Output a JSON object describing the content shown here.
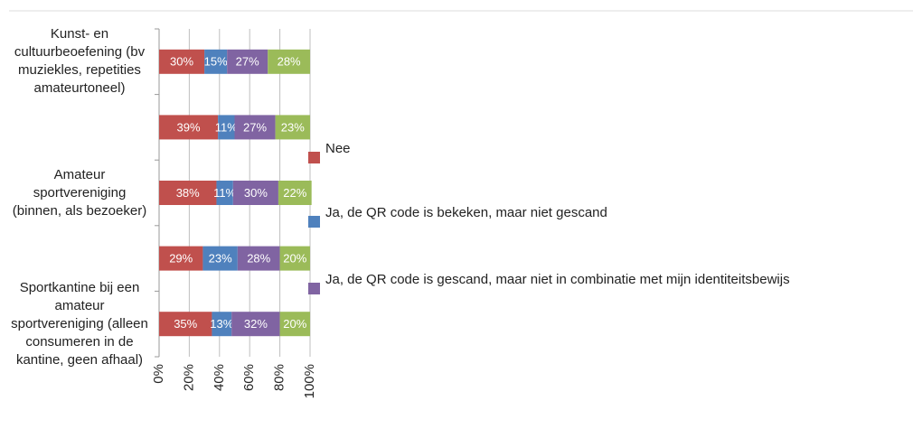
{
  "chart_data": {
    "type": "stacked_barh",
    "categories": [
      "Kunst- en cultuurbeoefening (bv muziekles, repetities amateurtoneel)",
      null,
      "Amateur sportvereniging (binnen, als bezoeker)",
      null,
      "Sportkantine bij een amateur sportvereniging (alleen consumeren in de kantine, geen afhaal)"
    ],
    "series": [
      {
        "name": "Nee",
        "color": "#c0504d",
        "values": [
          30,
          39,
          38,
          29,
          35
        ],
        "value_labels": [
          "30%",
          "39%",
          "38%",
          "29%",
          "35%"
        ]
      },
      {
        "name": "Ja, de QR code is bekeken, maar niet gescand",
        "color": "#4f81bd",
        "values": [
          15,
          11,
          11,
          23,
          13
        ],
        "value_labels": [
          "15%",
          "11%",
          "11%",
          "23%",
          "13%"
        ]
      },
      {
        "name": "Ja, de QR code is gescand, maar niet in combinatie met mijn identiteitsbewijs",
        "color": "#8064a2",
        "values": [
          27,
          27,
          30,
          28,
          32
        ],
        "value_labels": [
          "27%",
          "27%",
          "30%",
          "28%",
          "32%"
        ]
      },
      {
        "name": null,
        "color": "#9bbb59",
        "values": [
          28,
          23,
          22,
          20,
          20
        ],
        "value_labels": [
          "28%",
          "23%",
          "22%",
          "20%",
          "20%"
        ]
      }
    ],
    "xlim": [
      0,
      100
    ],
    "xticks": [
      {
        "value": 0,
        "label": "0%"
      },
      {
        "value": 20,
        "label": "20%"
      },
      {
        "value": 40,
        "label": "40%"
      },
      {
        "value": 60,
        "label": "60%"
      },
      {
        "value": 80,
        "label": "80%"
      },
      {
        "value": 100,
        "label": "100%"
      }
    ],
    "grid": true
  }
}
